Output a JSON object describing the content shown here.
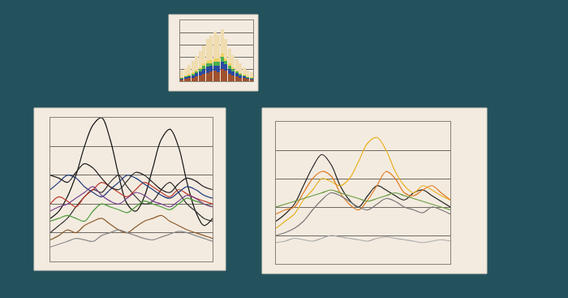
{
  "chart_data": [
    {
      "type": "bar",
      "stacked": true,
      "grid": true,
      "tick_labels": false,
      "categories": [
        null,
        null,
        null,
        null,
        null,
        null,
        null,
        null,
        null,
        null,
        null,
        null,
        null,
        null,
        null,
        null,
        null,
        null,
        null,
        null
      ],
      "ylim": [
        0,
        100
      ],
      "yticks": [
        20,
        40,
        60,
        80
      ],
      "series": [
        {
          "color": "#a0522d",
          "values": [
            3,
            4,
            5,
            6,
            8,
            10,
            12,
            14,
            16,
            18,
            15,
            20,
            18,
            12,
            10,
            8,
            6,
            5,
            4,
            3
          ]
        },
        {
          "color": "#2a4aa0",
          "values": [
            2,
            3,
            3,
            4,
            5,
            6,
            8,
            10,
            9,
            8,
            10,
            12,
            10,
            8,
            6,
            5,
            4,
            3,
            2,
            2
          ]
        },
        {
          "color": "#4caf50",
          "values": [
            1,
            2,
            2,
            3,
            3,
            4,
            5,
            6,
            5,
            6,
            7,
            8,
            6,
            5,
            4,
            3,
            2,
            2,
            1,
            1
          ]
        },
        {
          "color": "#f0d060",
          "values": [
            1,
            1,
            2,
            2,
            3,
            3,
            4,
            4,
            5,
            5,
            6,
            5,
            4,
            4,
            3,
            2,
            2,
            1,
            1,
            1
          ]
        },
        {
          "color": "#efdcb0",
          "values": [
            10,
            12,
            15,
            18,
            22,
            26,
            30,
            35,
            40,
            45,
            38,
            40,
            32,
            25,
            20,
            18,
            15,
            12,
            10,
            8
          ]
        }
      ]
    },
    {
      "type": "line",
      "grid": true,
      "tick_labels": false,
      "x": [
        0,
        1,
        2,
        3,
        4,
        5,
        6,
        7,
        8,
        9,
        10,
        11,
        12,
        13,
        14,
        15,
        16,
        17,
        18,
        19
      ],
      "xlim": [
        0,
        19
      ],
      "ylim": [
        0,
        100
      ],
      "yticks": [
        20,
        40,
        60,
        80
      ],
      "series": [
        {
          "color": "#111111",
          "values": [
            30,
            35,
            45,
            60,
            80,
            95,
            100,
            85,
            60,
            40,
            35,
            45,
            65,
            85,
            92,
            80,
            55,
            35,
            25,
            30
          ]
        },
        {
          "color": "#333333",
          "values": [
            20,
            25,
            30,
            38,
            45,
            50,
            48,
            55,
            60,
            52,
            45,
            40,
            42,
            50,
            55,
            48,
            40,
            35,
            30,
            28
          ]
        },
        {
          "color": "#c0392b",
          "values": [
            40,
            45,
            42,
            38,
            45,
            50,
            55,
            52,
            48,
            45,
            50,
            55,
            52,
            48,
            45,
            50,
            47,
            44,
            42,
            40
          ]
        },
        {
          "color": "#4a9a3a",
          "values": [
            28,
            30,
            32,
            30,
            28,
            35,
            40,
            38,
            36,
            34,
            38,
            42,
            40,
            38,
            36,
            40,
            44,
            42,
            40,
            38
          ]
        },
        {
          "color": "#1f3a7a",
          "values": [
            50,
            55,
            60,
            58,
            52,
            48,
            45,
            50,
            55,
            60,
            58,
            54,
            50,
            46,
            44,
            48,
            52,
            50,
            46,
            44
          ]
        },
        {
          "color": "#7a3f8f",
          "values": [
            35,
            38,
            40,
            44,
            48,
            52,
            46,
            42,
            40,
            44,
            48,
            46,
            42,
            40,
            38,
            42,
            46,
            44,
            40,
            38
          ]
        },
        {
          "color": "#8b5a2b",
          "values": [
            15,
            18,
            22,
            20,
            25,
            28,
            30,
            26,
            22,
            20,
            24,
            28,
            30,
            32,
            28,
            25,
            22,
            20,
            18,
            16
          ]
        },
        {
          "color": "#8a8a8a",
          "values": [
            10,
            12,
            14,
            16,
            15,
            14,
            18,
            20,
            22,
            20,
            18,
            16,
            15,
            17,
            19,
            21,
            20,
            18,
            16,
            14
          ]
        },
        {
          "color": "#222222",
          "values": [
            60,
            58,
            55,
            62,
            68,
            65,
            58,
            52,
            50,
            56,
            62,
            60,
            55,
            50,
            48,
            54,
            58,
            56,
            52,
            50
          ]
        }
      ]
    },
    {
      "type": "line",
      "grid": true,
      "tick_labels": false,
      "x": [
        0,
        1,
        2,
        3,
        4,
        5,
        6,
        7,
        8,
        9,
        10,
        11,
        12,
        13,
        14,
        15,
        16,
        17,
        18,
        19
      ],
      "xlim": [
        0,
        19
      ],
      "ylim": [
        0,
        100
      ],
      "yticks": [
        20,
        40,
        60,
        80
      ],
      "series": [
        {
          "color": "#222222",
          "values": [
            30,
            35,
            42,
            55,
            68,
            77,
            70,
            55,
            45,
            40,
            48,
            55,
            52,
            48,
            45,
            50,
            52,
            48,
            44,
            40
          ]
        },
        {
          "color": "#e8b020",
          "values": [
            25,
            30,
            35,
            45,
            52,
            60,
            58,
            55,
            60,
            72,
            85,
            89,
            80,
            65,
            55,
            50,
            55,
            52,
            48,
            45
          ]
        },
        {
          "color": "#e07a20",
          "values": [
            35,
            38,
            40,
            50,
            60,
            65,
            62,
            50,
            42,
            38,
            45,
            55,
            65,
            60,
            50,
            48,
            52,
            55,
            50,
            45
          ]
        },
        {
          "color": "#777777",
          "values": [
            20,
            22,
            25,
            30,
            38,
            45,
            50,
            48,
            44,
            40,
            38,
            42,
            46,
            44,
            40,
            38,
            36,
            40,
            38,
            35
          ]
        },
        {
          "color": "#aaaaaa",
          "values": [
            15,
            16,
            18,
            17,
            16,
            18,
            20,
            19,
            18,
            17,
            16,
            18,
            19,
            18,
            17,
            16,
            15,
            16,
            17,
            16
          ]
        },
        {
          "color": "#6a9a40",
          "values": [
            40,
            42,
            44,
            46,
            48,
            50,
            52,
            50,
            48,
            46,
            44,
            46,
            48,
            50,
            48,
            46,
            44,
            42,
            40,
            38
          ]
        }
      ]
    }
  ]
}
